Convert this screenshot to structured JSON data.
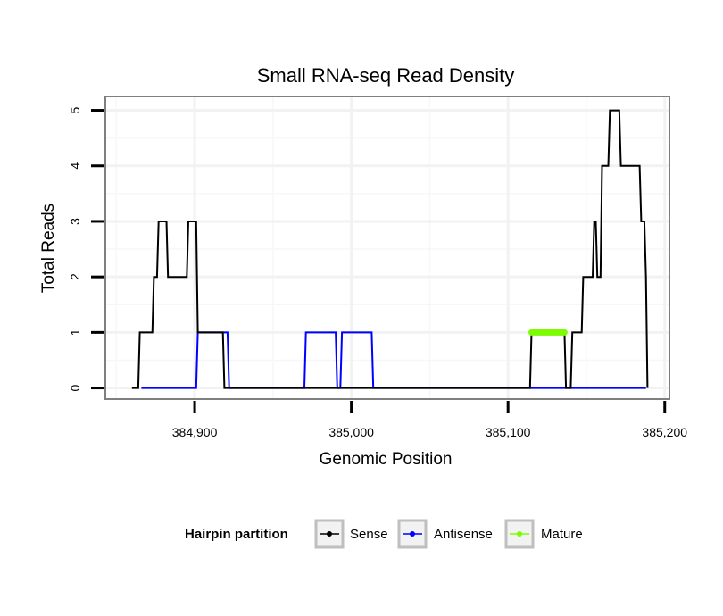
{
  "chart_data": {
    "type": "line",
    "title": "Small RNA-seq Read Density",
    "xlabel": "Genomic Position",
    "ylabel": "Total Reads",
    "xlim": [
      384843,
      385203
    ],
    "ylim": [
      -0.2,
      5.25
    ],
    "x_ticks": [
      384900,
      385000,
      385100,
      385200
    ],
    "x_tick_labels": [
      "384,900",
      "385,000",
      "385,100",
      "385,200"
    ],
    "y_ticks": [
      0,
      1,
      2,
      3,
      4,
      5
    ],
    "y_tick_labels": [
      "0",
      "1",
      "2",
      "3",
      "4",
      "5"
    ],
    "legend": {
      "title": "Hairpin partition",
      "position": "bottom",
      "entries": [
        {
          "name": "Sense",
          "color": "#000000"
        },
        {
          "name": "Antisense",
          "color": "#0000ff"
        },
        {
          "name": "Mature",
          "color": "#7cfc00"
        }
      ]
    },
    "series": [
      {
        "name": "Sense",
        "color": "#000000",
        "x": [
          384860,
          384864,
          384865,
          384873,
          384874,
          384876,
          384877,
          384882,
          384883,
          384885,
          384886,
          384895,
          384896,
          384901,
          384902,
          384918,
          384919,
          385114,
          385115,
          385136,
          385137,
          385140,
          385141,
          385147,
          385148,
          385154,
          385155,
          385156,
          385157,
          385159,
          385160,
          385164,
          385165,
          385171,
          385172,
          385177,
          385178,
          385184,
          385185,
          385187,
          385188,
          385189
        ],
        "values": [
          0,
          0,
          1,
          1,
          2,
          2,
          3,
          3,
          2,
          2,
          2,
          2,
          3,
          3,
          1,
          1,
          0,
          0,
          1,
          1,
          0,
          0,
          1,
          1,
          2,
          2,
          3,
          3,
          2,
          2,
          4,
          4,
          5,
          5,
          4,
          4,
          4,
          4,
          3,
          3,
          2,
          0
        ]
      },
      {
        "name": "Antisense",
        "color": "#0000ff",
        "x": [
          384866,
          384901,
          384902,
          384921,
          384922,
          384970,
          384971,
          384990,
          384991,
          384993,
          384994,
          385013,
          385014,
          385188
        ],
        "values": [
          0,
          0,
          1,
          1,
          0,
          0,
          1,
          1,
          0,
          0,
          1,
          1,
          0,
          0
        ]
      },
      {
        "name": "Mature",
        "color": "#7cfc00",
        "x": [
          385115,
          385136
        ],
        "values": [
          1,
          1
        ]
      }
    ]
  }
}
